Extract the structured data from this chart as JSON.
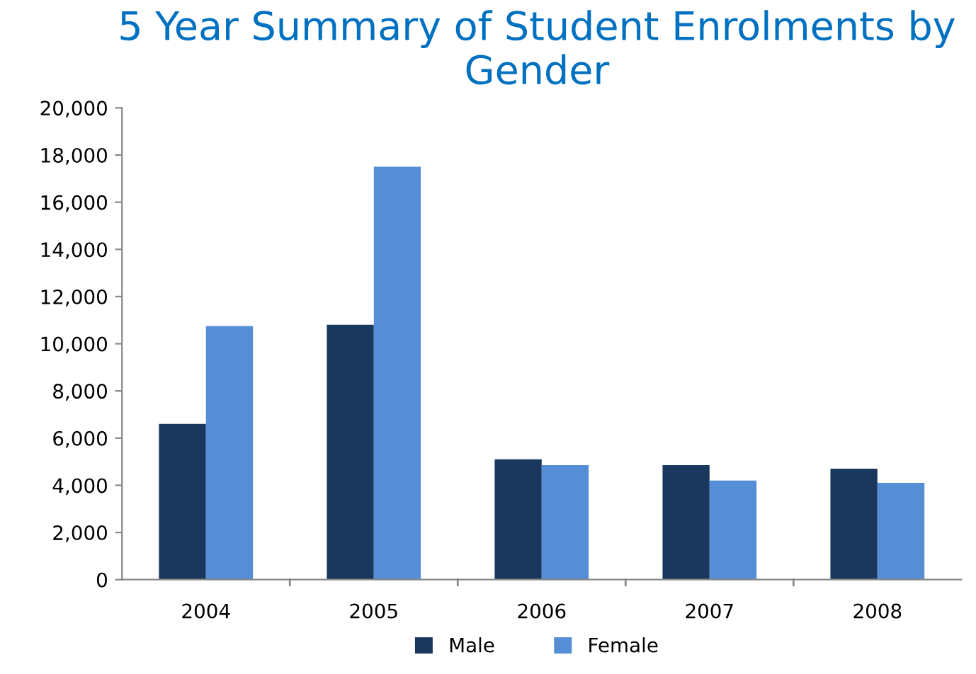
{
  "chart_data": {
    "type": "bar",
    "title": "5 Year Summary of Student Enrolments by Gender",
    "categories": [
      "2004",
      "2005",
      "2006",
      "2007",
      "2008"
    ],
    "series": [
      {
        "name": "Male",
        "color": "#1a375e",
        "values": [
          6600,
          10800,
          5100,
          4850,
          4700
        ]
      },
      {
        "name": "Female",
        "color": "#558ed5",
        "values": [
          10750,
          17500,
          4850,
          4200,
          4100
        ]
      }
    ],
    "ylim": [
      0,
      20000
    ],
    "yticks": [
      {
        "value": 0,
        "label": "0"
      },
      {
        "value": 2000,
        "label": "2,000"
      },
      {
        "value": 4000,
        "label": "4,000"
      },
      {
        "value": 6000,
        "label": "6,000"
      },
      {
        "value": 8000,
        "label": "8,000"
      },
      {
        "value": 10000,
        "label": "10,000"
      },
      {
        "value": 12000,
        "label": "12,000"
      },
      {
        "value": 14000,
        "label": "14,000"
      },
      {
        "value": 16000,
        "label": "16,000"
      },
      {
        "value": 18000,
        "label": "18,000"
      },
      {
        "value": 20000,
        "label": "20,000"
      }
    ],
    "grid": false,
    "legend": "bottom"
  }
}
